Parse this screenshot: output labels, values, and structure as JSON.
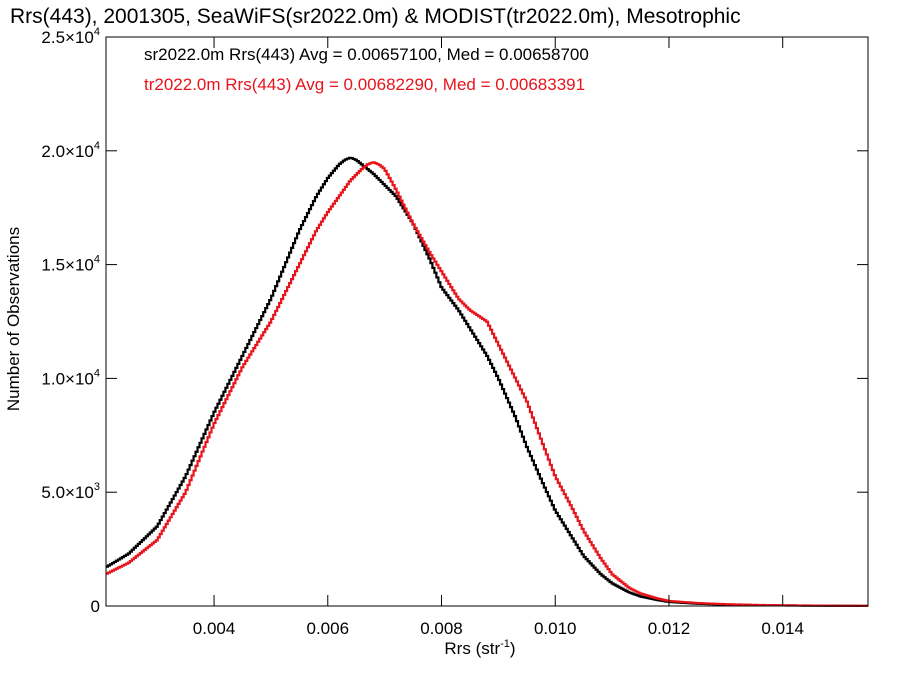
{
  "chart_data": {
    "type": "line",
    "title": "Rrs(443), 2001305, SeaWiFS(sr2022.0m) & MODIST(tr2022.0m), Mesotrophic",
    "xlabel": "Rrs (str",
    "xlabel_sup": "-1",
    "xlabel_end": ")",
    "ylabel": "Number of Observations",
    "xlim": [
      0.0021,
      0.0155
    ],
    "ylim": [
      0,
      25000
    ],
    "grid": false,
    "legend_position": "top-left",
    "x_ticks": [
      {
        "value": 0.004,
        "label": "0.004"
      },
      {
        "value": 0.006,
        "label": "0.006"
      },
      {
        "value": 0.008,
        "label": "0.008"
      },
      {
        "value": 0.01,
        "label": "0.010"
      },
      {
        "value": 0.012,
        "label": "0.012"
      },
      {
        "value": 0.014,
        "label": "0.014"
      }
    ],
    "y_ticks": [
      {
        "value": 0,
        "label": "0",
        "exp": ""
      },
      {
        "value": 5000,
        "label": "5.0×10",
        "exp": "3"
      },
      {
        "value": 10000,
        "label": "1.0×10",
        "exp": "4"
      },
      {
        "value": 15000,
        "label": "1.5×10",
        "exp": "4"
      },
      {
        "value": 20000,
        "label": "2.0×10",
        "exp": "4"
      },
      {
        "value": 25000,
        "label": "2.5×10",
        "exp": "4"
      }
    ],
    "series": [
      {
        "name": "sr2022.0m Rrs(443) Avg = 0.00657100, Med = 0.00658700",
        "color": "#000000",
        "x": [
          0.0021,
          0.0025,
          0.003,
          0.0035,
          0.004,
          0.0045,
          0.005,
          0.0055,
          0.0058,
          0.006,
          0.0062,
          0.0063,
          0.0064,
          0.0065,
          0.0066,
          0.0068,
          0.007,
          0.0072,
          0.0075,
          0.0078,
          0.008,
          0.0083,
          0.0085,
          0.0088,
          0.009,
          0.0093,
          0.0095,
          0.0098,
          0.01,
          0.0103,
          0.0105,
          0.0108,
          0.011,
          0.0113,
          0.0115,
          0.0118,
          0.012,
          0.0125,
          0.013,
          0.0135,
          0.014,
          0.0145,
          0.015,
          0.0155
        ],
        "y": [
          1700,
          2300,
          3500,
          5700,
          8500,
          11000,
          13500,
          16500,
          18000,
          18800,
          19400,
          19600,
          19700,
          19600,
          19400,
          19000,
          18500,
          18000,
          16800,
          15200,
          14000,
          13000,
          12200,
          11000,
          10000,
          8300,
          7000,
          5300,
          4200,
          3000,
          2200,
          1400,
          1000,
          600,
          420,
          260,
          180,
          100,
          60,
          40,
          25,
          15,
          10,
          5
        ]
      },
      {
        "name": "tr2022.0m Rrs(443) Avg = 0.00682290, Med = 0.00683391",
        "color": "#e8141c",
        "x": [
          0.0021,
          0.0025,
          0.003,
          0.0035,
          0.004,
          0.0045,
          0.005,
          0.0055,
          0.0058,
          0.006,
          0.0062,
          0.0064,
          0.0066,
          0.0067,
          0.0068,
          0.0069,
          0.007,
          0.0072,
          0.0075,
          0.0078,
          0.008,
          0.0083,
          0.0085,
          0.0088,
          0.009,
          0.0093,
          0.0095,
          0.0098,
          0.01,
          0.0103,
          0.0105,
          0.0108,
          0.011,
          0.0113,
          0.0115,
          0.0118,
          0.012,
          0.0125,
          0.013,
          0.0135,
          0.014,
          0.0145,
          0.015,
          0.0155
        ],
        "y": [
          1400,
          1900,
          2900,
          5000,
          8000,
          10500,
          12500,
          15000,
          16500,
          17300,
          18000,
          18700,
          19200,
          19400,
          19500,
          19400,
          19200,
          18300,
          16800,
          15500,
          14700,
          13500,
          13000,
          12500,
          11500,
          10000,
          9000,
          7000,
          5700,
          4300,
          3300,
          2100,
          1400,
          800,
          550,
          330,
          220,
          130,
          80,
          50,
          30,
          20,
          12,
          6
        ]
      }
    ]
  }
}
